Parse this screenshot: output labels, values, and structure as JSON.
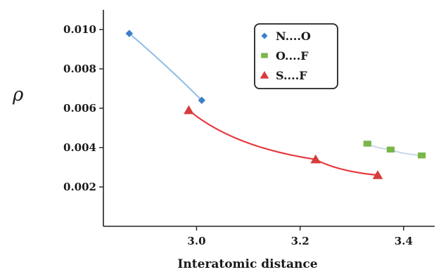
{
  "chart_data": {
    "type": "scatter",
    "title": "",
    "xlabel": "Interatomic distance",
    "ylabel": "ρ",
    "xlim": [
      2.82,
      3.46
    ],
    "ylim": [
      0.0,
      0.011
    ],
    "xticks": [
      "3.0",
      "3.2",
      "3.4"
    ],
    "yticks": [
      "0.002",
      "0.004",
      "0.006",
      "0.008",
      "0.010"
    ],
    "grid": false,
    "legend_position": "top-right",
    "series": [
      {
        "name": "N....O",
        "marker": "diamond",
        "color": "#3d7fc8",
        "line_color": "#8dbde6",
        "x": [
          2.87,
          3.01
        ],
        "y": [
          0.0098,
          0.0064
        ]
      },
      {
        "name": "O....F",
        "marker": "square",
        "color": "#7ab648",
        "line_color": "#c9d8ee",
        "x": [
          3.33,
          3.375,
          3.435
        ],
        "y": [
          0.0042,
          0.0039,
          0.0036
        ]
      },
      {
        "name": "S....F",
        "marker": "triangle",
        "color": "#d83b3b",
        "line_color": "#e8383d",
        "x": [
          2.985,
          3.23,
          3.35
        ],
        "y": [
          0.0059,
          0.0034,
          0.0026
        ]
      }
    ]
  }
}
